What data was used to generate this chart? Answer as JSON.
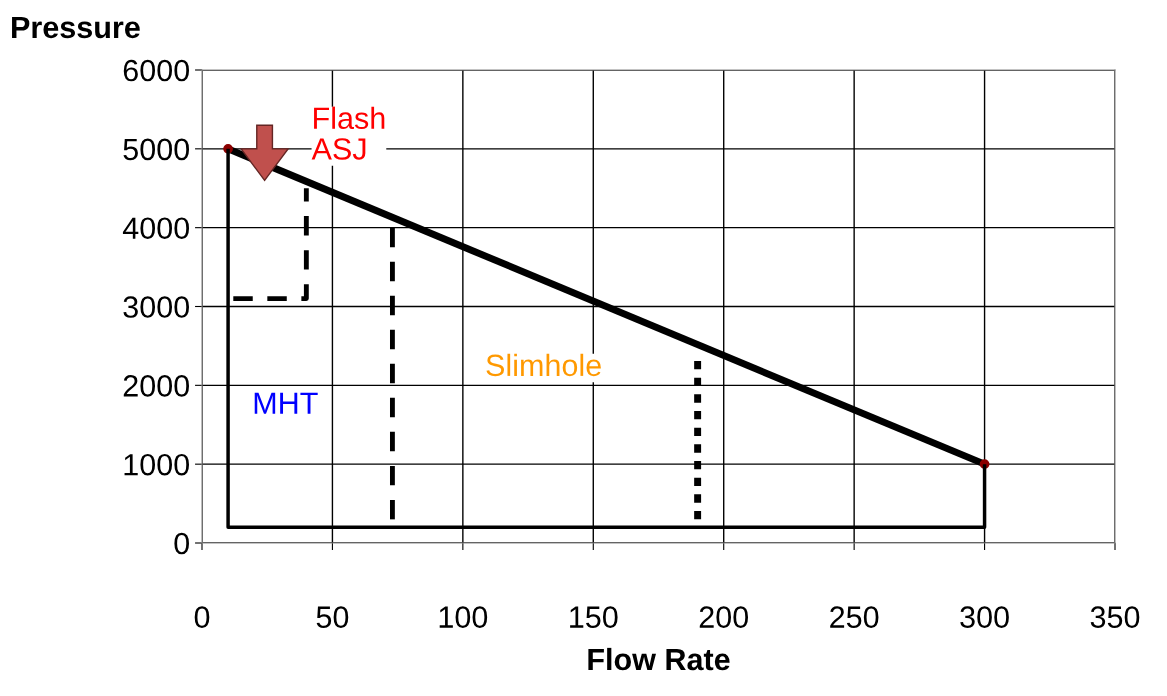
{
  "chart_data": {
    "type": "line",
    "xlabel": "Flow Rate",
    "ylabel": "Pressure",
    "xlim": [
      0,
      350
    ],
    "xticks": [
      0,
      50,
      100,
      150,
      200,
      250,
      300,
      350
    ],
    "ylim": [
      0,
      6000
    ],
    "yticks": [
      0,
      1000,
      2000,
      3000,
      4000,
      5000,
      6000
    ],
    "grid": true,
    "series": [
      {
        "color": "#000000",
        "x": [
          10,
          300
        ],
        "values": [
          5000,
          1000
        ],
        "line_style": "solid",
        "marker": "circle"
      },
      {
        "color": "#000000",
        "x": [
          10,
          10,
          300,
          300
        ],
        "values": [
          5000,
          200,
          200,
          1000
        ],
        "line_style": "solid"
      },
      {
        "color": "#000000",
        "x": [
          12,
          40,
          40
        ],
        "values": [
          3100,
          3100,
          4500
        ],
        "line_style": "dashed"
      },
      {
        "color": "#000000",
        "x": [
          73,
          73
        ],
        "values": [
          300,
          4100
        ],
        "line_style": "dashed"
      },
      {
        "color": "#000000",
        "x": [
          190,
          190
        ],
        "values": [
          300,
          2400
        ],
        "line_style": "dotted"
      }
    ],
    "annotations": [
      "Flash\nASJ",
      "Slimhole",
      "MHT"
    ]
  }
}
